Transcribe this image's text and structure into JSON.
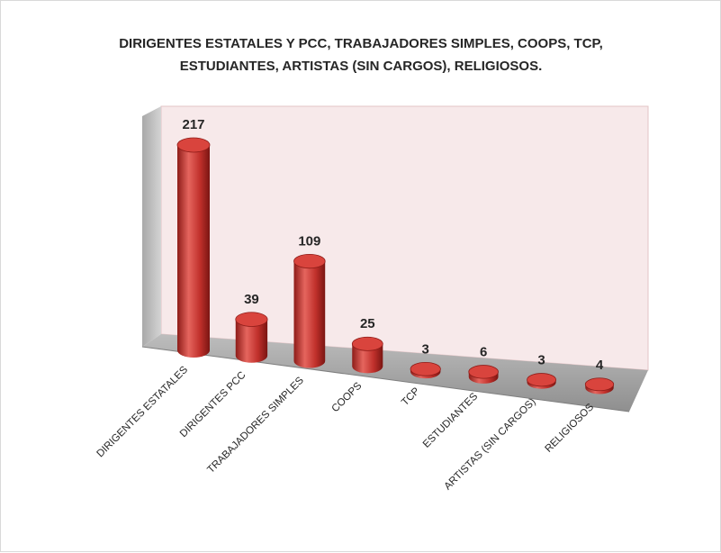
{
  "chart_data": {
    "type": "bar",
    "style": "3d-cylinder",
    "title_lines": [
      "DIRIGENTES ESTATALES Y PCC, TRABAJADORES SIMPLES,  COOPS, TCP,",
      "ESTUDIANTES, ARTISTAS (SIN CARGOS), RELIGIOSOS."
    ],
    "categories": [
      "DIRIGENTES ESTATALES",
      "DIRIGENTES PCC",
      "TRABAJADORES SIMPLES",
      "COOPS",
      "TCP",
      "ESTUDIANTES",
      "ARTISTAS (SIN CARGOS)",
      "RELIGIOSOS"
    ],
    "values": [
      217,
      39,
      109,
      25,
      3,
      6,
      3,
      4
    ],
    "data_labels": [
      "217",
      "39",
      "109",
      "25",
      "3",
      "6",
      "3",
      "4"
    ],
    "ylim": [
      0,
      217
    ],
    "grid": false,
    "legend": "none",
    "colors": {
      "bar": "#c0302b",
      "bar_dark": "#8e1c18",
      "bar_light": "#e5655e",
      "bar_top": "#d9443d",
      "back_wall": "#f7e9ea",
      "side_wall": "#c4c4c4",
      "floor": "#a6a6a6"
    }
  }
}
